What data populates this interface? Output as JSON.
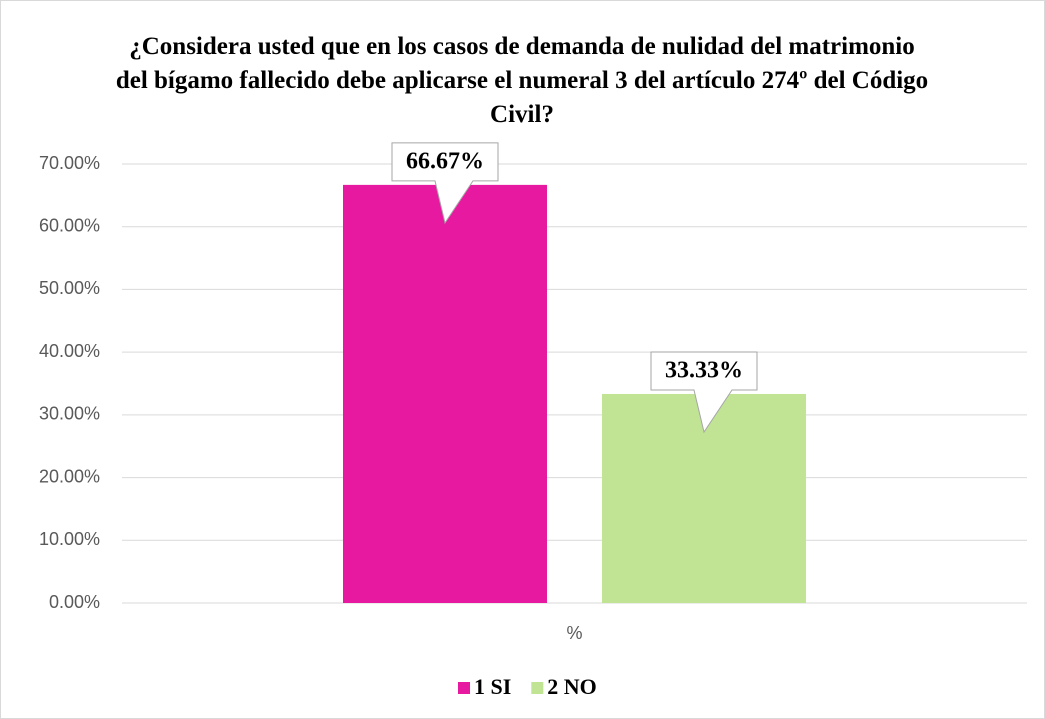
{
  "chart_data": {
    "type": "bar",
    "title": "¿Considera usted que en los casos de demanda de nulidad del matrimonio del bígamo fallecido debe aplicarse el numeral 3 del artículo 274º del Código Civil?",
    "categories": [
      "%"
    ],
    "series": [
      {
        "name": "1 SI",
        "color": "#e619a0",
        "values": [
          66.67
        ],
        "value_labels": [
          "66.67%"
        ]
      },
      {
        "name": "2 NO",
        "color": "#c0e394",
        "values": [
          33.33
        ],
        "value_labels": [
          "33.33%"
        ]
      }
    ],
    "ylim": [
      0,
      70
    ],
    "yticks": [
      {
        "value": 0,
        "label": "0.00%"
      },
      {
        "value": 10,
        "label": "10.00%"
      },
      {
        "value": 20,
        "label": "20.00%"
      },
      {
        "value": 30,
        "label": "30.00%"
      },
      {
        "value": 40,
        "label": "40.00%"
      },
      {
        "value": 50,
        "label": "50.00%"
      },
      {
        "value": 60,
        "label": "60.00%"
      },
      {
        "value": 70,
        "label": "70.00%"
      }
    ],
    "grid": true,
    "legend": "bottom"
  }
}
